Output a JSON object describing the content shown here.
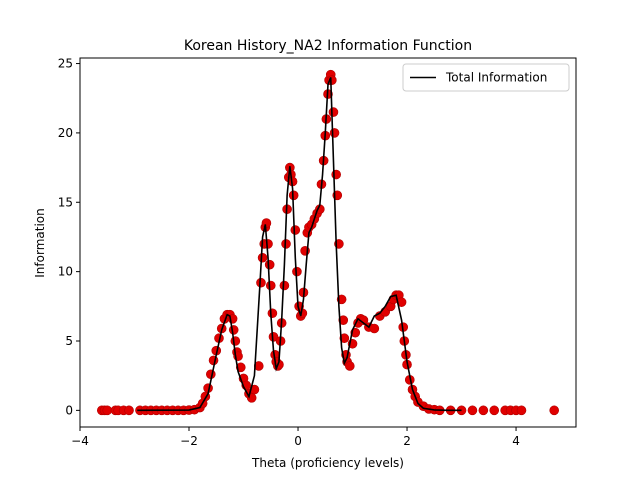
{
  "chart_data": {
    "type": "line",
    "title": "Korean History_NA2 Information Function",
    "xlabel": "Theta (proficiency levels)",
    "ylabel": "Information",
    "xlim": [
      -4,
      5.1
    ],
    "ylim": [
      -1.2,
      25.4
    ],
    "xticks": [
      -4,
      -2,
      0,
      2,
      4
    ],
    "yticks": [
      0,
      5,
      10,
      15,
      20,
      25
    ],
    "grid": false,
    "legend_position": "top-right",
    "colors": {
      "line": "#000000",
      "points": "#e00000",
      "points_edge": "#b00000"
    },
    "series": [
      {
        "name": "Total Information",
        "kind": "line",
        "x": [
          -2.95,
          -2.0,
          -1.8,
          -1.65,
          -1.5,
          -1.4,
          -1.3,
          -1.25,
          -1.2,
          -1.15,
          -1.1,
          -1.0,
          -0.9,
          -0.8,
          -0.7,
          -0.65,
          -0.6,
          -0.55,
          -0.5,
          -0.45,
          -0.4,
          -0.35,
          -0.3,
          -0.25,
          -0.2,
          -0.15,
          -0.1,
          -0.05,
          0.0,
          0.05,
          0.1,
          0.15,
          0.2,
          0.25,
          0.3,
          0.35,
          0.4,
          0.45,
          0.5,
          0.55,
          0.6,
          0.65,
          0.7,
          0.75,
          0.8,
          0.85,
          0.9,
          1.0,
          1.1,
          1.2,
          1.3,
          1.4,
          1.5,
          1.6,
          1.7,
          1.8,
          1.9,
          2.0,
          2.1,
          2.2,
          2.3,
          2.5,
          2.75,
          3.0
        ],
        "y": [
          0.0,
          0.02,
          0.2,
          1.2,
          4.0,
          5.8,
          6.9,
          6.8,
          5.6,
          4.0,
          2.8,
          1.7,
          1.0,
          2.5,
          9.0,
          12.5,
          13.4,
          11.0,
          7.0,
          4.3,
          3.0,
          3.5,
          6.5,
          10.5,
          15.5,
          17.6,
          16.0,
          11.0,
          7.5,
          6.8,
          8.0,
          10.5,
          12.8,
          13.2,
          13.8,
          14.4,
          14.8,
          17.0,
          20.0,
          23.5,
          24.0,
          18.0,
          12.0,
          7.5,
          4.5,
          3.4,
          3.8,
          5.8,
          6.6,
          6.3,
          6.0,
          6.8,
          7.0,
          7.5,
          8.2,
          8.3,
          6.5,
          3.5,
          1.5,
          0.5,
          0.15,
          0.03,
          0.0,
          0.0
        ]
      },
      {
        "name": "",
        "kind": "scatter",
        "x": [
          -3.6,
          -3.55,
          -3.5,
          -3.35,
          -3.3,
          -3.2,
          -3.1,
          -2.9,
          -2.8,
          -2.7,
          -2.6,
          -2.5,
          -2.4,
          -2.3,
          -2.2,
          -2.1,
          -2.0,
          -1.9,
          -1.8,
          -1.75,
          -1.7,
          -1.65,
          -1.6,
          -1.55,
          -1.5,
          -1.45,
          -1.4,
          -1.35,
          -1.3,
          -1.25,
          -1.2,
          -1.18,
          -1.15,
          -1.12,
          -1.1,
          -1.05,
          -1.0,
          -0.95,
          -0.9,
          -0.85,
          -0.8,
          -0.72,
          -0.68,
          -0.65,
          -0.62,
          -0.6,
          -0.58,
          -0.55,
          -0.52,
          -0.5,
          -0.47,
          -0.45,
          -0.42,
          -0.4,
          -0.37,
          -0.35,
          -0.32,
          -0.3,
          -0.25,
          -0.22,
          -0.2,
          -0.17,
          -0.15,
          -0.13,
          -0.1,
          -0.08,
          -0.05,
          -0.02,
          0.02,
          0.05,
          0.08,
          0.1,
          0.13,
          0.17,
          0.2,
          0.25,
          0.3,
          0.35,
          0.4,
          0.43,
          0.47,
          0.5,
          0.52,
          0.55,
          0.57,
          0.6,
          0.62,
          0.65,
          0.67,
          0.7,
          0.72,
          0.75,
          0.8,
          0.83,
          0.85,
          0.88,
          0.9,
          0.95,
          1.0,
          1.05,
          1.1,
          1.15,
          1.2,
          1.3,
          1.4,
          1.5,
          1.6,
          1.7,
          1.75,
          1.8,
          1.85,
          1.9,
          1.93,
          1.95,
          1.98,
          2.0,
          2.05,
          2.1,
          2.15,
          2.2,
          2.3,
          2.4,
          2.5,
          2.6,
          2.8,
          3.0,
          3.2,
          3.4,
          3.6,
          3.8,
          3.9,
          4.0,
          4.1,
          4.7
        ],
        "y": [
          0.0,
          0.0,
          0.0,
          0.0,
          0.0,
          0.0,
          0.0,
          0.0,
          0.0,
          0.0,
          0.0,
          0.0,
          0.0,
          0.0,
          0.0,
          0.0,
          0.02,
          0.05,
          0.2,
          0.5,
          1.0,
          1.6,
          2.6,
          3.6,
          4.3,
          5.2,
          5.9,
          6.6,
          6.9,
          6.9,
          6.6,
          5.8,
          5.0,
          4.2,
          3.9,
          3.1,
          2.3,
          1.8,
          1.2,
          0.9,
          1.5,
          3.2,
          9.2,
          11.0,
          12.0,
          13.2,
          13.5,
          12.0,
          10.5,
          9.0,
          7.0,
          5.3,
          4.0,
          3.5,
          3.2,
          3.3,
          5.0,
          6.3,
          9.0,
          12.0,
          14.5,
          16.8,
          17.5,
          17.0,
          16.5,
          15.5,
          13.0,
          10.0,
          7.5,
          6.8,
          7.0,
          8.5,
          11.5,
          12.8,
          13.2,
          13.4,
          13.8,
          14.2,
          14.5,
          16.3,
          18.0,
          19.8,
          21.0,
          22.8,
          23.8,
          24.2,
          23.8,
          21.5,
          20.0,
          17.0,
          15.5,
          12.0,
          8.0,
          6.5,
          5.2,
          4.0,
          3.5,
          3.2,
          4.8,
          5.6,
          6.3,
          6.6,
          6.5,
          6.0,
          5.9,
          6.8,
          7.1,
          7.5,
          8.0,
          8.3,
          8.3,
          7.8,
          6.0,
          5.0,
          4.0,
          3.3,
          2.2,
          1.5,
          1.0,
          0.6,
          0.3,
          0.1,
          0.05,
          0.0,
          0.0,
          0.0,
          0.0,
          0.0,
          0.0,
          0.0,
          0.0,
          0.0,
          0.0,
          0.0
        ]
      }
    ]
  }
}
